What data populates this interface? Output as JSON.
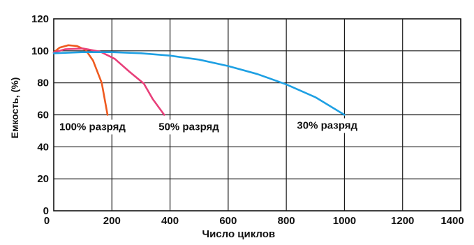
{
  "chart_data": {
    "type": "line",
    "title": "",
    "xlabel": "Число циклов",
    "ylabel": "Емкость, (%)",
    "xlim": [
      0,
      1400
    ],
    "ylim": [
      0,
      120
    ],
    "x_ticks": [
      0,
      200,
      400,
      600,
      800,
      1000,
      1200,
      1400
    ],
    "x_tick_labels": [
      "0",
      "200",
      "400",
      "600",
      "800",
      "1000",
      "1200",
      "1400"
    ],
    "y_ticks": [
      0,
      20,
      40,
      60,
      80,
      100,
      120
    ],
    "y_tick_labels": [
      "0",
      "20",
      "40",
      "60",
      "80",
      "100",
      "120"
    ],
    "grid": true,
    "legend": "none",
    "series": [
      {
        "name": "100% разряд",
        "color": "#ef5a1f",
        "points": [
          [
            0,
            99
          ],
          [
            20,
            102
          ],
          [
            50,
            103.5
          ],
          [
            80,
            103
          ],
          [
            110,
            100.5
          ],
          [
            135,
            94
          ],
          [
            165,
            80
          ],
          [
            185,
            60
          ]
        ]
      },
      {
        "name": "50% разряд",
        "color": "#e8407a",
        "points": [
          [
            0,
            99
          ],
          [
            40,
            101
          ],
          [
            100,
            101.5
          ],
          [
            160,
            99.5
          ],
          [
            210,
            95
          ],
          [
            260,
            87
          ],
          [
            310,
            79.5
          ],
          [
            340,
            70
          ],
          [
            380,
            60
          ]
        ]
      },
      {
        "name": "30% разряд",
        "color": "#1ea0e3",
        "points": [
          [
            0,
            98.5
          ],
          [
            100,
            99.2
          ],
          [
            200,
            99.2
          ],
          [
            300,
            98.5
          ],
          [
            400,
            97
          ],
          [
            500,
            94.5
          ],
          [
            600,
            90.5
          ],
          [
            700,
            85.5
          ],
          [
            800,
            79
          ],
          [
            900,
            71
          ],
          [
            1000,
            60
          ]
        ]
      }
    ],
    "annotations": [
      {
        "text": "100% разряд",
        "series": 0
      },
      {
        "text": "50% разряд",
        "series": 1
      },
      {
        "text": "30% разряд",
        "series": 2
      }
    ]
  }
}
